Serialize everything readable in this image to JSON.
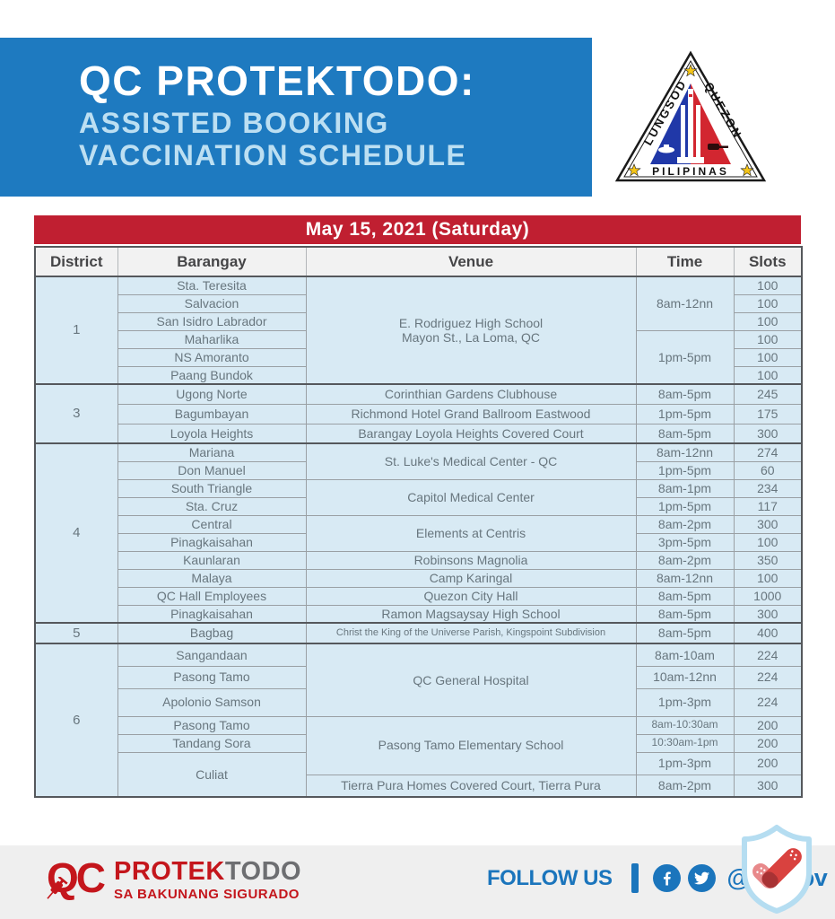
{
  "hero": {
    "title": "QC PROTEKTODO:",
    "subtitle_line1": "ASSISTED BOOKING",
    "subtitle_line2": "VACCINATION SCHEDULE"
  },
  "seal": {
    "name": "quezon-city-seal",
    "left_text": "LUNGSOD",
    "right_text": "QUEZON",
    "bottom_text": "PILIPINAS"
  },
  "colors": {
    "hero_blue": "#1e7ac0",
    "subtitle_blue": "#bcdff2",
    "bar_red": "#c01f31",
    "cell_blue": "#d8eaf4",
    "cell_text": "#68767e",
    "footer_blue": "#1b75bc",
    "brand_red": "#c4161c",
    "brand_gray": "#6d6e71"
  },
  "schedule": {
    "date_title": "May 15, 2021 (Saturday)",
    "columns": [
      "District",
      "Barangay",
      "Venue",
      "Time",
      "Slots"
    ],
    "groups": [
      {
        "district": "1",
        "rows": [
          {
            "barangay": "Sta. Teresita",
            "venue": {
              "lines": [
                "E. Rodriguez High School",
                "Mayon St., La Loma, QC"
              ],
              "span": 6
            },
            "time": {
              "text": "8am-12nn",
              "span": 3
            },
            "slots": "100"
          },
          {
            "barangay": "Salvacion",
            "slots": "100"
          },
          {
            "barangay": "San Isidro Labrador",
            "slots": "100"
          },
          {
            "barangay": "Maharlika",
            "time": {
              "text": "1pm-5pm",
              "span": 3
            },
            "slots": "100"
          },
          {
            "barangay": "NS Amoranto",
            "slots": "100"
          },
          {
            "barangay": "Paang Bundok",
            "slots": "100"
          }
        ]
      },
      {
        "district": "3",
        "rows": [
          {
            "barangay": "Ugong Norte",
            "venue": "Corinthian Gardens Clubhouse",
            "time": "8am-5pm",
            "slots": "245"
          },
          {
            "barangay": "Bagumbayan",
            "venue": "Richmond Hotel Grand Ballroom Eastwood",
            "time": "1pm-5pm",
            "slots": "175"
          },
          {
            "barangay": "Loyola Heights",
            "venue": "Barangay Loyola Heights Covered Court",
            "time": "8am-5pm",
            "slots": "300"
          }
        ]
      },
      {
        "district": "4",
        "rows": [
          {
            "barangay": "Mariana",
            "venue": {
              "text": "St. Luke's Medical Center - QC",
              "span": 2
            },
            "time": "8am-12nn",
            "slots": "274"
          },
          {
            "barangay": "Don Manuel",
            "time": "1pm-5pm",
            "slots": "60"
          },
          {
            "barangay": "South Triangle",
            "venue": {
              "text": "Capitol Medical Center",
              "span": 2
            },
            "time": "8am-1pm",
            "slots": "234"
          },
          {
            "barangay": "Sta. Cruz",
            "time": "1pm-5pm",
            "slots": "117"
          },
          {
            "barangay": "Central",
            "venue": {
              "text": "Elements at Centris",
              "span": 2
            },
            "time": "8am-2pm",
            "slots": "300"
          },
          {
            "barangay": "Pinagkaisahan",
            "time": "3pm-5pm",
            "slots": "100"
          },
          {
            "barangay": "Kaunlaran",
            "venue": "Robinsons Magnolia",
            "time": "8am-2pm",
            "slots": "350"
          },
          {
            "barangay": "Malaya",
            "venue": "Camp Karingal",
            "time": "8am-12nn",
            "slots": "100"
          },
          {
            "barangay": "QC Hall Employees",
            "venue": "Quezon City Hall",
            "time": "8am-5pm",
            "slots": "1000"
          },
          {
            "barangay": "Pinagkaisahan",
            "venue": "Ramon Magsaysay High School",
            "time": "8am-5pm",
            "slots": "300"
          }
        ]
      },
      {
        "district": "5",
        "rows": [
          {
            "barangay": "Bagbag",
            "venue": "Christ the King of the Universe Parish, Kingspoint Subdivision",
            "time": "8am-5pm",
            "slots": "400"
          }
        ]
      },
      {
        "district": "6",
        "rows": [
          {
            "barangay": "Sangandaan",
            "venue": {
              "text": "QC General Hospital",
              "span": 3
            },
            "time": "8am-10am",
            "slots": "224"
          },
          {
            "barangay": "Pasong Tamo",
            "time": "10am-12nn",
            "slots": "224"
          },
          {
            "barangay": "Apolonio Samson",
            "time": "1pm-3pm",
            "slots": "224"
          },
          {
            "barangay": "Pasong Tamo",
            "venue": {
              "text": "Pasong Tamo Elementary School",
              "span": 3
            },
            "time": "8am-10:30am",
            "slots": "200"
          },
          {
            "barangay": "Tandang Sora",
            "time": "10:30am-1pm",
            "slots": "200"
          },
          {
            "barangay": {
              "text": "Culiat",
              "span": 2
            },
            "time": "1pm-3pm",
            "slots": "200"
          },
          {
            "venue": "Tierra Pura Homes Covered Court, Tierra Pura",
            "time": "8am-2pm",
            "slots": "300"
          }
        ]
      }
    ]
  },
  "footer": {
    "brand_qc": "QC",
    "brand_protek": "PROTEK",
    "brand_todo": "TODO",
    "brand_tagline": "SA BAKUNANG SIGURADO",
    "follow_us": "FOLLOW US",
    "handle": "@QCgov",
    "icons": [
      "syringe-icon",
      "facebook-icon",
      "twitter-icon",
      "shield-check-icon"
    ]
  }
}
